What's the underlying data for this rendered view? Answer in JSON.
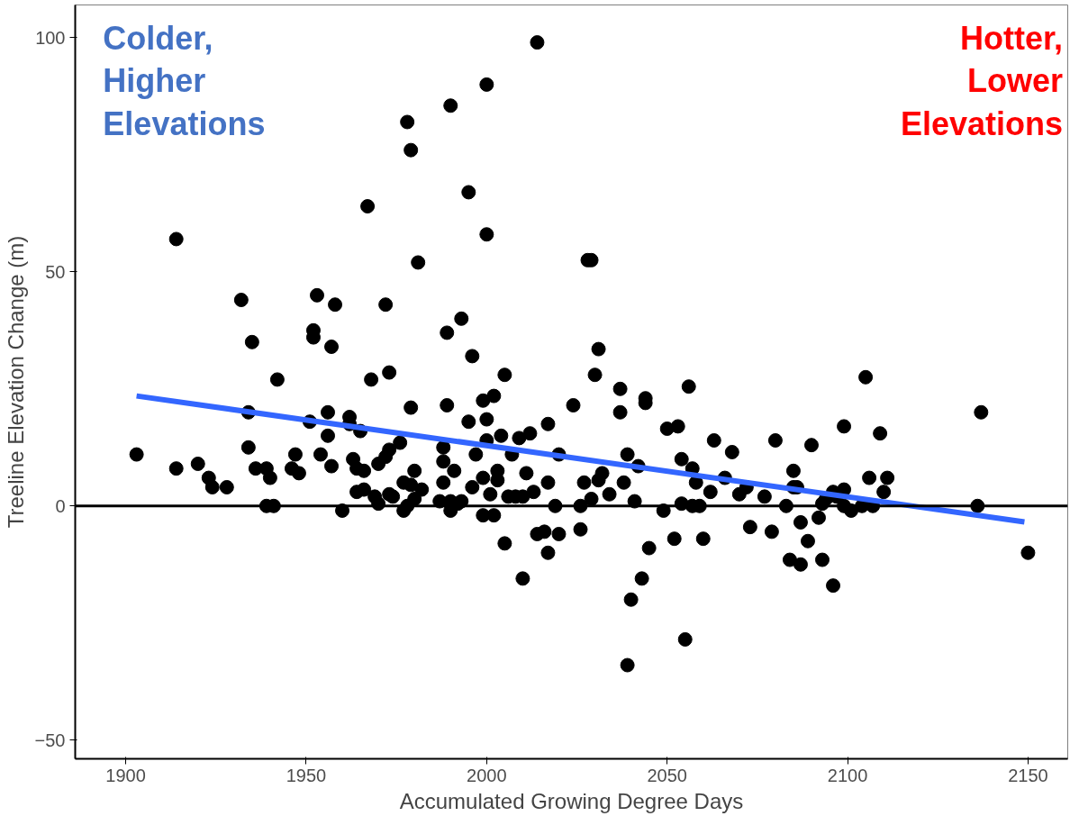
{
  "chart_data": {
    "type": "scatter",
    "xlabel": "Accumulated Growing Degree Days",
    "ylabel": "Treeline Elevation Change (m)",
    "annotations": [
      "Colder,\nHigher\nElevations",
      "Hotter,\nLower\nElevations"
    ],
    "xlim": [
      1886,
      2161
    ],
    "ylim": [
      -54,
      107
    ],
    "xticks": [
      1900,
      1950,
      2000,
      2050,
      2100,
      2150
    ],
    "yticks": [
      -50,
      0,
      50,
      100
    ],
    "grid": false,
    "marker": "circle",
    "ref_lines": [
      {
        "axis": "y",
        "value": 0,
        "color": "#000000",
        "line_style": "solid"
      }
    ],
    "series": [
      {
        "color": "#000000",
        "x": [
          1903,
          1914,
          1914,
          1920,
          1923,
          1924,
          1928,
          1932,
          1934,
          1934,
          1935,
          1936,
          1942,
          1939,
          1939,
          1941,
          1940,
          1946,
          1947,
          1948,
          1951,
          1952,
          1952,
          1953,
          1954,
          1956,
          1956,
          1957,
          1957,
          1958,
          1960,
          1962,
          1962,
          1963,
          1964,
          1964,
          1965,
          1966,
          1966,
          1967,
          1968,
          1969,
          1970,
          1970,
          1972,
          1972,
          1973,
          1973,
          1973,
          1974,
          1976,
          1977,
          1977,
          1978,
          1978,
          1979,
          1979,
          1979,
          1980,
          1980,
          1981,
          1982,
          1987,
          1988,
          1988,
          1988,
          1989,
          1989,
          1990,
          1990,
          1990,
          1991,
          1992,
          1993,
          1993,
          1995,
          1995,
          1996,
          1996,
          1997,
          1999,
          1999,
          1999,
          2000,
          2000,
          2000,
          2000,
          2001,
          2002,
          2002,
          2003,
          2003,
          2004,
          2005,
          2005,
          2006,
          2007,
          2008,
          2009,
          2010,
          2010,
          2011,
          2012,
          2013,
          2014,
          2014,
          2016,
          2017,
          2017,
          2017,
          2019,
          2020,
          2020,
          2024,
          2026,
          2026,
          2027,
          2028,
          2029,
          2029,
          2030,
          2031,
          2031,
          2032,
          2034,
          2037,
          2037,
          2038,
          2039,
          2039,
          2040,
          2041,
          2042,
          2043,
          2044,
          2044,
          2045,
          2049,
          2050,
          2052,
          2053,
          2054,
          2054,
          2055,
          2056,
          2057,
          2057,
          2058,
          2059,
          2060,
          2062,
          2063,
          2066,
          2068,
          2070,
          2072,
          2073,
          2077,
          2079,
          2080,
          2083,
          2084,
          2085,
          2085,
          2086,
          2087,
          2087,
          2090,
          2089,
          2093,
          2092,
          2093,
          2094,
          2096,
          2096,
          2097,
          2099,
          2099,
          2099,
          2101,
          2104,
          2105,
          2106,
          2107,
          2109,
          2110,
          2111,
          2136,
          2137,
          2150
        ],
        "values": [
          11,
          57,
          8,
          9,
          6,
          4,
          4,
          44,
          12.5,
          20,
          35,
          8,
          27,
          8,
          0,
          0,
          6,
          8,
          11,
          7,
          18,
          37.5,
          36,
          45,
          11,
          15,
          20,
          34,
          8.5,
          43,
          -1,
          19,
          17.5,
          10,
          8,
          3,
          16,
          7.5,
          3.5,
          64,
          27,
          2,
          9,
          0.5,
          43,
          10.5,
          12,
          28.5,
          2.5,
          2,
          13.5,
          -1,
          5,
          82,
          0,
          76,
          21,
          4.5,
          7.5,
          1.5,
          52,
          3.5,
          1,
          5,
          12.5,
          9.5,
          37,
          21.5,
          1,
          -1,
          85.5,
          7.5,
          0.5,
          40,
          1,
          67,
          18,
          32,
          4,
          11,
          22.5,
          6,
          -2,
          58,
          90,
          18.5,
          14,
          2.5,
          23.5,
          -2,
          5.5,
          7.5,
          15,
          28,
          -8,
          2,
          11,
          2,
          14.5,
          -15.5,
          2,
          7,
          15.5,
          3,
          -6,
          99,
          -5.5,
          17.5,
          5,
          -10,
          0,
          -6,
          11,
          21.5,
          -5,
          0,
          5,
          52.5,
          52.5,
          1.5,
          28,
          5.5,
          33.5,
          7,
          2.5,
          25,
          20,
          5,
          11,
          -34,
          -20,
          1,
          8.5,
          -15.5,
          22,
          23,
          -9,
          -1,
          16.5,
          -7,
          17,
          10,
          0.5,
          -28.5,
          25.5,
          8,
          0,
          5,
          0,
          -7,
          3,
          14,
          6,
          11.5,
          2.5,
          4,
          -4.5,
          2,
          -5.5,
          14,
          0,
          -11.5,
          7.5,
          4,
          4,
          -3.5,
          -12.5,
          13,
          -7.5,
          -11.5,
          -2.5,
          0.5,
          1.5,
          -17,
          3,
          2,
          17,
          3.5,
          0,
          -1,
          0,
          27.5,
          6,
          0,
          15.5,
          3,
          6,
          0,
          20,
          -10
        ]
      },
      {
        "type": "line",
        "marker": "none",
        "color": "#3366ff",
        "x": [
          1903,
          2149
        ],
        "values": [
          23.5,
          -3.4
        ]
      }
    ]
  }
}
